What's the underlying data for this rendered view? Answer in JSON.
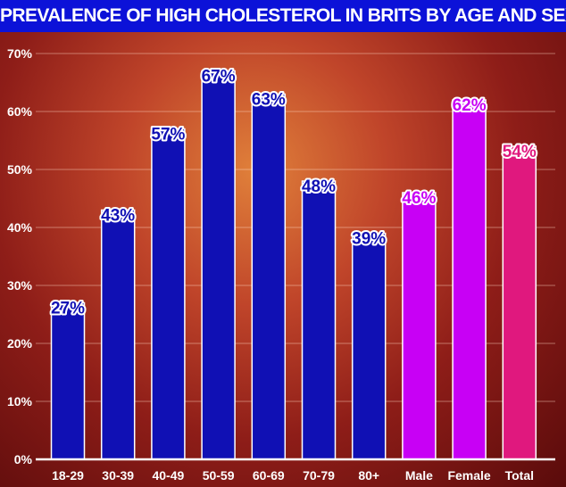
{
  "chart_data": {
    "type": "bar",
    "title": "PREVALENCE OF HIGH CHOLESTEROL IN BRITS BY AGE AND SEX",
    "xlabel": "",
    "ylabel": "",
    "ylim": [
      0,
      70
    ],
    "yticks": [
      "0%",
      "10%",
      "20%",
      "30%",
      "40%",
      "50%",
      "60%",
      "70%"
    ],
    "grid": true,
    "categories": [
      "18-29",
      "30-39",
      "40-49",
      "50-59",
      "60-69",
      "70-79",
      "80+",
      "Male",
      "Female",
      "Total"
    ],
    "values": [
      27,
      43,
      57,
      67,
      63,
      48,
      39,
      46,
      62,
      54
    ],
    "data_labels": [
      "27%",
      "43%",
      "57%",
      "67%",
      "63%",
      "48%",
      "39%",
      "46%",
      "62%",
      "54%"
    ],
    "colors": [
      "#1010b4",
      "#1010b4",
      "#1010b4",
      "#1010b4",
      "#1010b4",
      "#1010b4",
      "#1010b4",
      "#c800f5",
      "#c800f5",
      "#e0187e"
    ]
  }
}
